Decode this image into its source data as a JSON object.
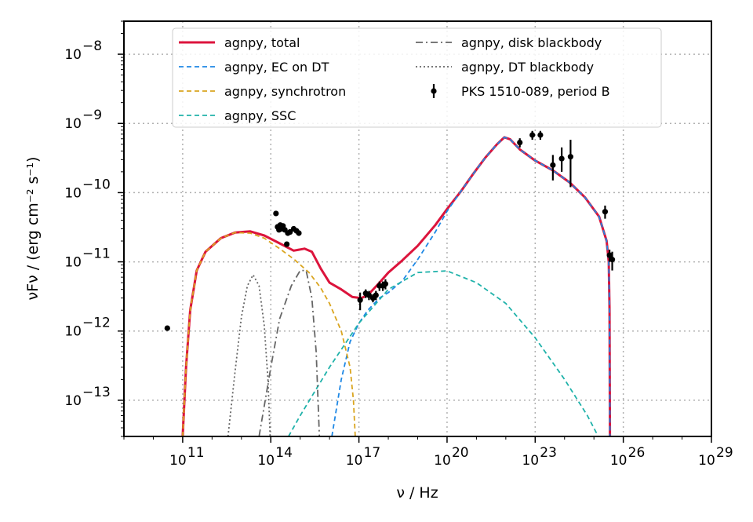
{
  "chart_data": {
    "type": "line",
    "xlabel": "ν / Hz",
    "ylabel": "νFν / (erg cm⁻² s⁻¹)",
    "x_scale": "log",
    "y_scale": "log",
    "xlim": [
      1000000000.0,
      1e+29
    ],
    "ylim": [
      3e-14,
      3e-08
    ],
    "grid": true,
    "legend_position": "top",
    "x_ticks": [
      {
        "value": 100000000000.0,
        "base": "10",
        "exp": "11"
      },
      {
        "value": 100000000000000.0,
        "base": "10",
        "exp": "14"
      },
      {
        "value": 1e+17,
        "base": "10",
        "exp": "17"
      },
      {
        "value": 1e+20,
        "base": "10",
        "exp": "20"
      },
      {
        "value": 1e+23,
        "base": "10",
        "exp": "23"
      },
      {
        "value": 1e+26,
        "base": "10",
        "exp": "26"
      },
      {
        "value": 1e+29,
        "base": "10",
        "exp": "29"
      }
    ],
    "y_ticks": [
      {
        "value": 1e-13,
        "base": "10",
        "exp": "−13"
      },
      {
        "value": 1e-12,
        "base": "10",
        "exp": "−12"
      },
      {
        "value": 1e-11,
        "base": "10",
        "exp": "−11"
      },
      {
        "value": 1e-10,
        "base": "10",
        "exp": "−10"
      },
      {
        "value": 1e-09,
        "base": "10",
        "exp": "−9"
      },
      {
        "value": 1e-08,
        "base": "10",
        "exp": "−8"
      }
    ],
    "series": [
      {
        "name": "agnpy, total",
        "style": "solid",
        "color": "#dc143c",
        "points": [
          [
            100000000000.0,
            3e-14
          ],
          [
            130000000000.0,
            3e-13
          ],
          [
            180000000000.0,
            2e-12
          ],
          [
            300000000000.0,
            7.5e-12
          ],
          [
            600000000000.0,
            1.4e-11
          ],
          [
            2000000000000.0,
            2.2e-11
          ],
          [
            6000000000000.0,
            2.65e-11
          ],
          [
            20000000000000.0,
            2.75e-11
          ],
          [
            60000000000000.0,
            2.4e-11
          ],
          [
            200000000000000.0,
            1.85e-11
          ],
          [
            600000000000000.0,
            1.45e-11
          ],
          [
            1400000000000000.0,
            1.55e-11
          ],
          [
            2500000000000000.0,
            1.4e-11
          ],
          [
            5000000000000000.0,
            8e-12
          ],
          [
            1e+16,
            5e-12
          ],
          [
            2.5e+16,
            4e-12
          ],
          [
            6e+16,
            3.1e-12
          ],
          [
            1.2e+17,
            3e-12
          ],
          [
            2e+17,
            3.3e-12
          ],
          [
            5e+17,
            5e-12
          ],
          [
            1e+18,
            7e-12
          ],
          [
            3e+18,
            1.05e-11
          ],
          [
            1e+19,
            1.7e-11
          ],
          [
            4e+19,
            3.4e-11
          ],
          [
            1e+20,
            5.8e-11
          ],
          [
            3e+20,
            1.05e-10
          ],
          [
            8e+20,
            1.9e-10
          ],
          [
            2e+21,
            3.2e-10
          ],
          [
            5e+21,
            5e-10
          ],
          [
            9e+21,
            6.3e-10
          ],
          [
            1.4e+22,
            5.9e-10
          ],
          [
            3e+22,
            4.2e-10
          ],
          [
            1e+23,
            2.9e-10
          ],
          [
            4e+23,
            2.1e-10
          ],
          [
            1.5e+24,
            1.4e-10
          ],
          [
            5e+24,
            8.5e-11
          ],
          [
            1.5e+25,
            4.5e-11
          ],
          [
            2.7e+25,
            2e-11
          ],
          [
            3.2e+25,
            1e-11
          ],
          [
            3.4e+25,
            2e-12
          ],
          [
            3.5e+25,
            3e-14
          ]
        ]
      },
      {
        "name": "agnpy, EC on DT",
        "style": "dashed",
        "color": "#1e88e5",
        "points": [
          [
            1.2e+16,
            3e-14
          ],
          [
            2.5e+16,
            2e-13
          ],
          [
            5e+16,
            7e-13
          ],
          [
            1e+17,
            1.3e-12
          ],
          [
            2e+17,
            2e-12
          ],
          [
            5e+17,
            3e-12
          ],
          [
            1e+18,
            3.6e-12
          ],
          [
            3e+18,
            5.3e-12
          ],
          [
            1e+19,
            1.08e-11
          ],
          [
            4e+19,
            2.7e-11
          ],
          [
            1e+20,
            5.4e-11
          ],
          [
            3e+20,
            1.05e-10
          ],
          [
            8e+20,
            1.9e-10
          ],
          [
            2e+21,
            3.2e-10
          ],
          [
            5e+21,
            5e-10
          ],
          [
            9e+21,
            6.3e-10
          ],
          [
            1.4e+22,
            5.9e-10
          ],
          [
            3e+22,
            4.2e-10
          ],
          [
            1e+23,
            2.9e-10
          ],
          [
            4e+23,
            2.1e-10
          ],
          [
            1.5e+24,
            1.4e-10
          ],
          [
            5e+24,
            8.5e-11
          ],
          [
            1.5e+25,
            4.5e-11
          ],
          [
            2.7e+25,
            2e-11
          ],
          [
            3.2e+25,
            1e-11
          ],
          [
            3.4e+25,
            2e-12
          ],
          [
            3.5e+25,
            3e-14
          ]
        ]
      },
      {
        "name": "agnpy, synchrotron",
        "style": "dashed",
        "color": "#daa520",
        "points": [
          [
            100000000000.0,
            3e-14
          ],
          [
            130000000000.0,
            3e-13
          ],
          [
            180000000000.0,
            2e-12
          ],
          [
            300000000000.0,
            7.5e-12
          ],
          [
            600000000000.0,
            1.4e-11
          ],
          [
            2000000000000.0,
            2.2e-11
          ],
          [
            6000000000000.0,
            2.65e-11
          ],
          [
            20000000000000.0,
            2.6e-11
          ],
          [
            60000000000000.0,
            2.2e-11
          ],
          [
            200000000000000.0,
            1.55e-11
          ],
          [
            600000000000000.0,
            1.1e-11
          ],
          [
            2000000000000000.0,
            7e-12
          ],
          [
            5000000000000000.0,
            4.2e-12
          ],
          [
            1e+16,
            2.5e-12
          ],
          [
            2.5e+16,
            1e-12
          ],
          [
            5e+16,
            3e-13
          ],
          [
            6.5e+16,
            1e-13
          ],
          [
            7.5e+16,
            3e-14
          ]
        ]
      },
      {
        "name": "agnpy, SSC",
        "style": "dashed",
        "color": "#20b2aa",
        "points": [
          [
            400000000000000.0,
            3e-14
          ],
          [
            1000000000000000.0,
            6e-14
          ],
          [
            3000000000000000.0,
            1.3e-13
          ],
          [
            1e+16,
            3e-13
          ],
          [
            1e+17,
            1.3e-12
          ],
          [
            1e+18,
            4e-12
          ],
          [
            1e+19,
            7e-12
          ],
          [
            1e+20,
            7.4e-12
          ],
          [
            1e+21,
            5e-12
          ],
          [
            1e+22,
            2.5e-12
          ],
          [
            1e+23,
            8e-13
          ],
          [
            1e+24,
            2e-13
          ],
          [
            6e+24,
            6e-14
          ],
          [
            1.4e+25,
            3e-14
          ]
        ]
      },
      {
        "name": "agnpy, disk blackbody",
        "style": "dashdot",
        "color": "#666666",
        "points": [
          [
            40000000000000.0,
            3e-14
          ],
          [
            100000000000000.0,
            3e-13
          ],
          [
            200000000000000.0,
            1.5e-12
          ],
          [
            500000000000000.0,
            4.5e-12
          ],
          [
            1000000000000000.0,
            7.5e-12
          ],
          [
            1600000000000000.0,
            7.5e-12
          ],
          [
            2500000000000000.0,
            3e-12
          ],
          [
            3500000000000000.0,
            5e-13
          ],
          [
            4500000000000000.0,
            3e-14
          ]
        ]
      },
      {
        "name": "agnpy, DT blackbody",
        "style": "dotted",
        "color": "#666666",
        "points": [
          [
            3500000000000.0,
            3e-14
          ],
          [
            6000000000000.0,
            2.5e-13
          ],
          [
            10000000000000.0,
            1.6e-12
          ],
          [
            16000000000000.0,
            4.5e-12
          ],
          [
            25000000000000.0,
            6.5e-12
          ],
          [
            40000000000000.0,
            4.5e-12
          ],
          [
            60000000000000.0,
            1.2e-12
          ],
          [
            80000000000000.0,
            2e-13
          ],
          [
            95000000000000.0,
            3e-14
          ]
        ]
      },
      {
        "name": "PKS 1510-089, period B",
        "style": "errorbar",
        "color": "#000000",
        "points": [
          {
            "x": 30000000000.0,
            "y": 1.1e-12
          },
          {
            "x": 150000000000000.0,
            "y": 5e-11
          },
          {
            "x": 170000000000000.0,
            "y": 3.2e-11
          },
          {
            "x": 190000000000000.0,
            "y": 2.9e-11
          },
          {
            "x": 210000000000000.0,
            "y": 3.4e-11
          },
          {
            "x": 230000000000000.0,
            "y": 3e-11
          },
          {
            "x": 260000000000000.0,
            "y": 3.3e-11
          },
          {
            "x": 300000000000000.0,
            "y": 2.9e-11
          },
          {
            "x": 350000000000000.0,
            "y": 1.8e-11
          },
          {
            "x": 380000000000000.0,
            "y": 2.6e-11
          },
          {
            "x": 450000000000000.0,
            "y": 2.7e-11
          },
          {
            "x": 600000000000000.0,
            "y": 3e-11
          },
          {
            "x": 750000000000000.0,
            "y": 2.8e-11
          },
          {
            "x": 900000000000000.0,
            "y": 2.6e-11
          },
          {
            "x": 1.1e+17,
            "y": 2.8e-12,
            "ylo": 2e-12,
            "yhi": 3.6e-12
          },
          {
            "x": 1.7e+17,
            "y": 3.5e-12,
            "ylo": 3e-12,
            "yhi": 4e-12
          },
          {
            "x": 2.2e+17,
            "y": 3.3e-12,
            "ylo": 2.8e-12,
            "yhi": 3.8e-12
          },
          {
            "x": 3e+17,
            "y": 3e-12,
            "ylo": 2.6e-12,
            "yhi": 3.4e-12
          },
          {
            "x": 3.8e+17,
            "y": 3.3e-12,
            "ylo": 2.8e-12,
            "yhi": 3.8e-12
          },
          {
            "x": 5e+17,
            "y": 4.5e-12,
            "ylo": 3.8e-12,
            "yhi": 5.2e-12
          },
          {
            "x": 6.5e+17,
            "y": 4.5e-12,
            "ylo": 3.8e-12,
            "yhi": 5.2e-12
          },
          {
            "x": 8e+17,
            "y": 4.8e-12,
            "ylo": 4e-12,
            "yhi": 5.6e-12
          },
          {
            "x": 3e+22,
            "y": 5.3e-10,
            "ylo": 4.5e-10,
            "yhi": 6.1e-10
          },
          {
            "x": 8e+22,
            "y": 6.8e-10,
            "ylo": 5.8e-10,
            "yhi": 7.8e-10
          },
          {
            "x": 1.5e+23,
            "y": 6.8e-10,
            "ylo": 5.8e-10,
            "yhi": 7.8e-10
          },
          {
            "x": 4e+23,
            "y": 2.5e-10,
            "ylo": 1.5e-10,
            "yhi": 3.5e-10
          },
          {
            "x": 8e+23,
            "y": 3.1e-10,
            "ylo": 2e-10,
            "yhi": 4.5e-10
          },
          {
            "x": 1.6e+24,
            "y": 3.3e-10,
            "ylo": 1.2e-10,
            "yhi": 5.8e-10
          },
          {
            "x": 2.4e+25,
            "y": 5.3e-11,
            "ylo": 4.2e-11,
            "yhi": 6.5e-11
          },
          {
            "x": 3.4e+25,
            "y": 1.25e-11,
            "ylo": 1e-11,
            "yhi": 1.5e-11
          },
          {
            "x": 4.2e+25,
            "y": 1.08e-11,
            "ylo": 7.5e-12,
            "yhi": 1.4e-11
          }
        ]
      }
    ]
  }
}
